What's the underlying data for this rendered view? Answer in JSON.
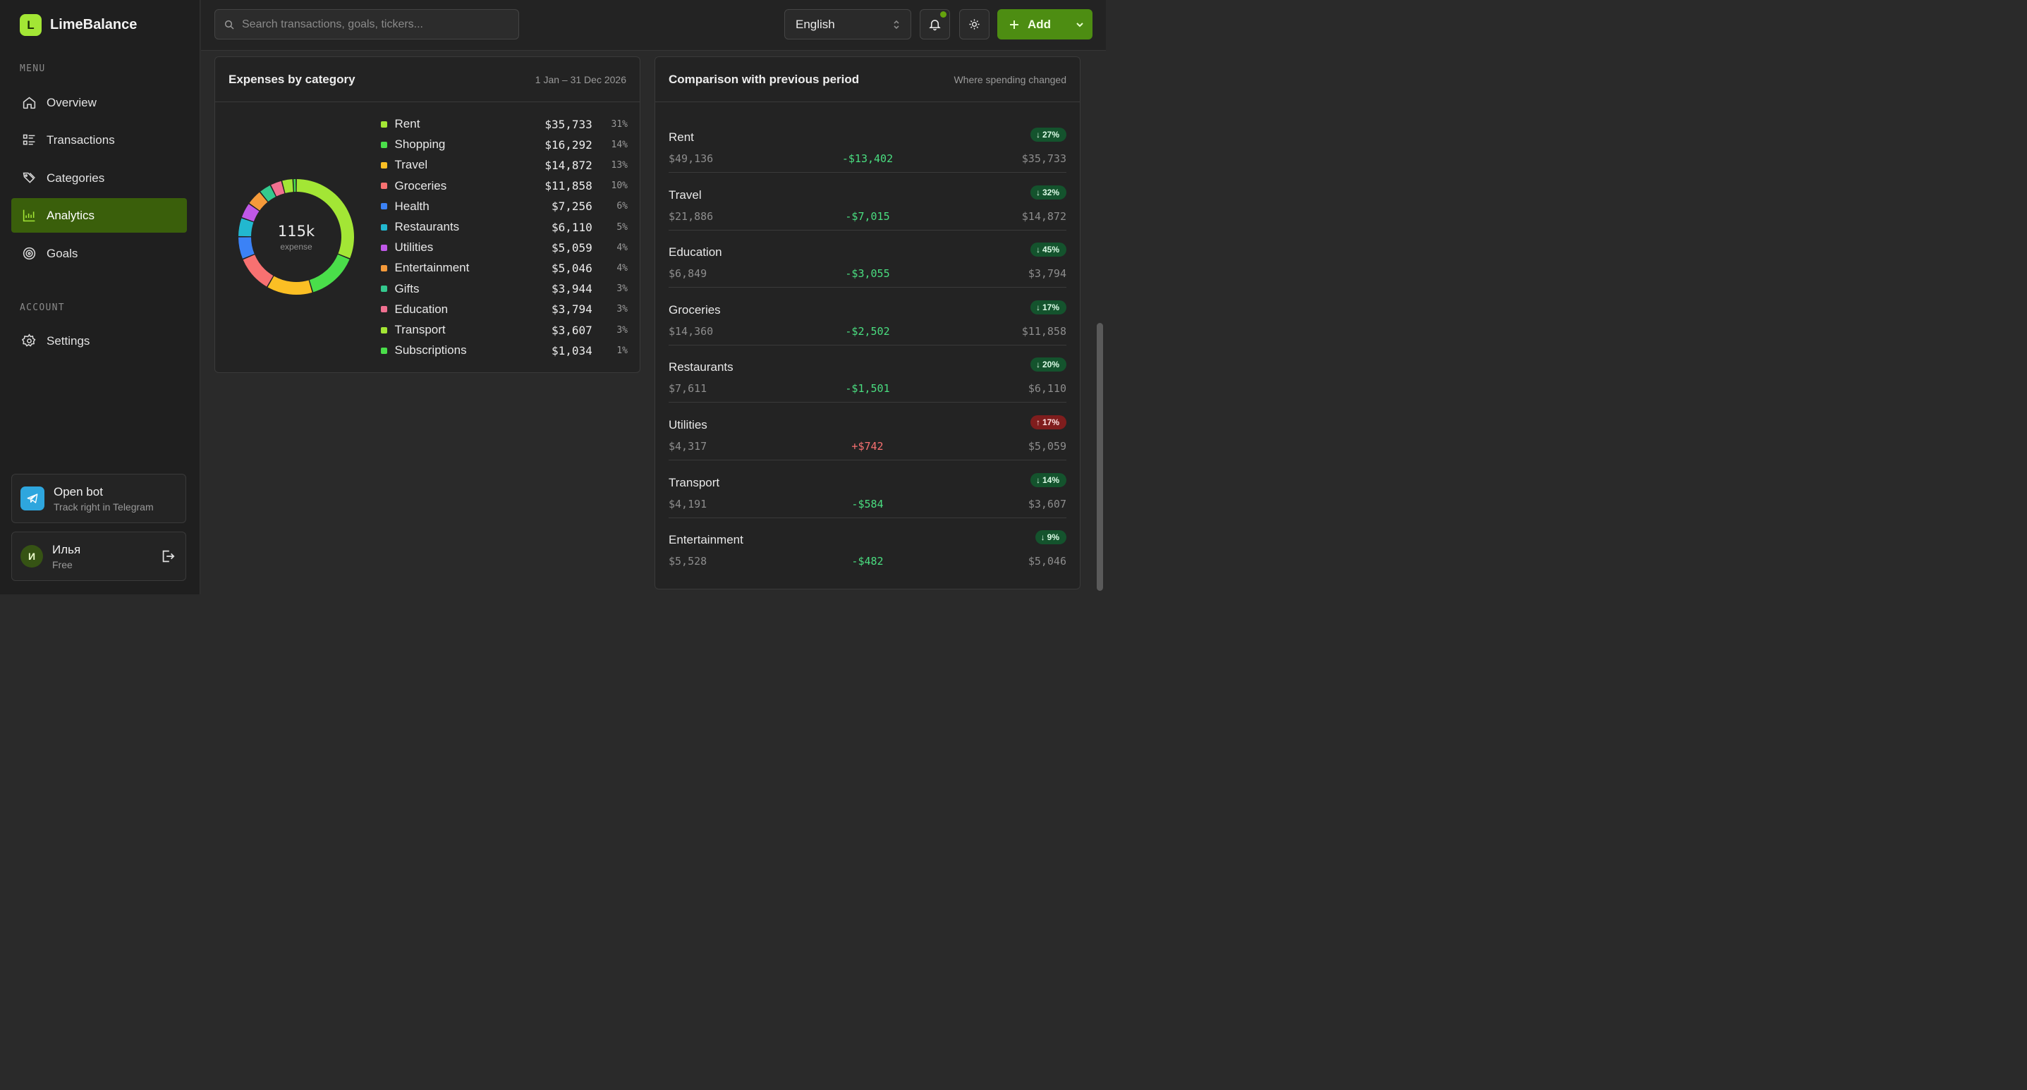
{
  "brand": {
    "logo_letter": "L",
    "name": "LimeBalance"
  },
  "sidebar": {
    "menu_label": "MENU",
    "account_label": "ACCOUNT",
    "items": [
      {
        "label": "Overview",
        "icon": "home-icon"
      },
      {
        "label": "Transactions",
        "icon": "list-icon"
      },
      {
        "label": "Categories",
        "icon": "tags-icon"
      },
      {
        "label": "Analytics",
        "icon": "chart-icon",
        "active": true
      },
      {
        "label": "Goals",
        "icon": "target-icon"
      }
    ],
    "settings_label": "Settings",
    "bot": {
      "title": "Open bot",
      "subtitle": "Track right in Telegram"
    },
    "user": {
      "initial": "И",
      "name": "Илья",
      "plan": "Free"
    }
  },
  "topbar": {
    "search_placeholder": "Search transactions, goals, tickers...",
    "language": "English",
    "add_label": "Add"
  },
  "expenses": {
    "title": "Expenses by category",
    "period": "1 Jan – 31 Dec 2026",
    "center_value": "115k",
    "center_label": "expense",
    "categories": [
      {
        "name": "Rent",
        "amount": "$35,733",
        "pct": "31%",
        "color": "#a3e635",
        "value": 35733
      },
      {
        "name": "Shopping",
        "amount": "$16,292",
        "pct": "14%",
        "color": "#4ade4a",
        "value": 16292
      },
      {
        "name": "Travel",
        "amount": "$14,872",
        "pct": "13%",
        "color": "#fbbf24",
        "value": 14872
      },
      {
        "name": "Groceries",
        "amount": "$11,858",
        "pct": "10%",
        "color": "#f87171",
        "value": 11858
      },
      {
        "name": "Health",
        "amount": "$7,256",
        "pct": "6%",
        "color": "#3b82f6",
        "value": 7256
      },
      {
        "name": "Restaurants",
        "amount": "$6,110",
        "pct": "5%",
        "color": "#22b8cf",
        "value": 6110
      },
      {
        "name": "Utilities",
        "amount": "$5,059",
        "pct": "4%",
        "color": "#c058e8",
        "value": 5059
      },
      {
        "name": "Entertainment",
        "amount": "$5,046",
        "pct": "4%",
        "color": "#f59a3a",
        "value": 5046
      },
      {
        "name": "Gifts",
        "amount": "$3,944",
        "pct": "3%",
        "color": "#34c98e",
        "value": 3944
      },
      {
        "name": "Education",
        "amount": "$3,794",
        "pct": "3%",
        "color": "#f07090",
        "value": 3794
      },
      {
        "name": "Transport",
        "amount": "$3,607",
        "pct": "3%",
        "color": "#a3e635",
        "value": 3607
      },
      {
        "name": "Subscriptions",
        "amount": "$1,034",
        "pct": "1%",
        "color": "#4ade4a",
        "value": 1034
      }
    ]
  },
  "comparison": {
    "title": "Comparison with previous period",
    "subtitle": "Where spending changed",
    "rows": [
      {
        "name": "Rent",
        "badge": "27%",
        "dir": "down",
        "prev": "$49,136",
        "delta": "-$13,402",
        "curr": "$35,733"
      },
      {
        "name": "Travel",
        "badge": "32%",
        "dir": "down",
        "prev": "$21,886",
        "delta": "-$7,015",
        "curr": "$14,872"
      },
      {
        "name": "Education",
        "badge": "45%",
        "dir": "down",
        "prev": "$6,849",
        "delta": "-$3,055",
        "curr": "$3,794"
      },
      {
        "name": "Groceries",
        "badge": "17%",
        "dir": "down",
        "prev": "$14,360",
        "delta": "-$2,502",
        "curr": "$11,858"
      },
      {
        "name": "Restaurants",
        "badge": "20%",
        "dir": "down",
        "prev": "$7,611",
        "delta": "-$1,501",
        "curr": "$6,110"
      },
      {
        "name": "Utilities",
        "badge": "17%",
        "dir": "up",
        "prev": "$4,317",
        "delta": "+$742",
        "curr": "$5,059"
      },
      {
        "name": "Transport",
        "badge": "14%",
        "dir": "down",
        "prev": "$4,191",
        "delta": "-$584",
        "curr": "$3,607"
      },
      {
        "name": "Entertainment",
        "badge": "9%",
        "dir": "down",
        "prev": "$5,528",
        "delta": "-$482",
        "curr": "$5,046"
      }
    ]
  }
}
